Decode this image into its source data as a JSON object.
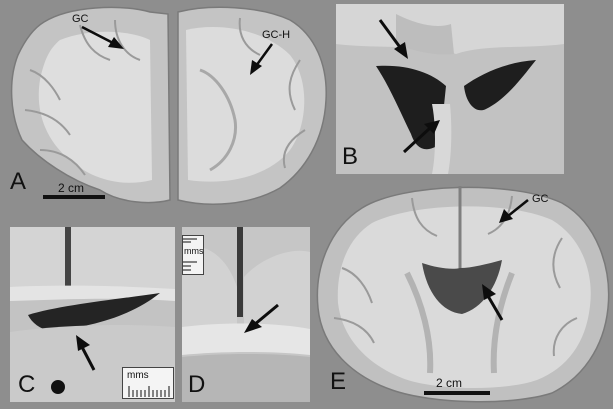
{
  "panels": {
    "a": {
      "label": "A",
      "annotations": {
        "gc": "GC",
        "gc_h": "GC-H"
      },
      "scale_bar": "2 cm"
    },
    "b": {
      "label": "B"
    },
    "c": {
      "label": "C",
      "ruler": "mms"
    },
    "d": {
      "label": "D",
      "ruler": "mms"
    },
    "e": {
      "label": "E",
      "annotations": {
        "gc": "GC"
      },
      "scale_bar": "2 cm"
    }
  },
  "colors": {
    "background": "#8e8e8e",
    "tissue_white_matter": "#d9d9d9",
    "tissue_gray_matter": "#bdbdbd",
    "ventricle": "#1e1e1e",
    "arrow": "#0d0d0d"
  }
}
